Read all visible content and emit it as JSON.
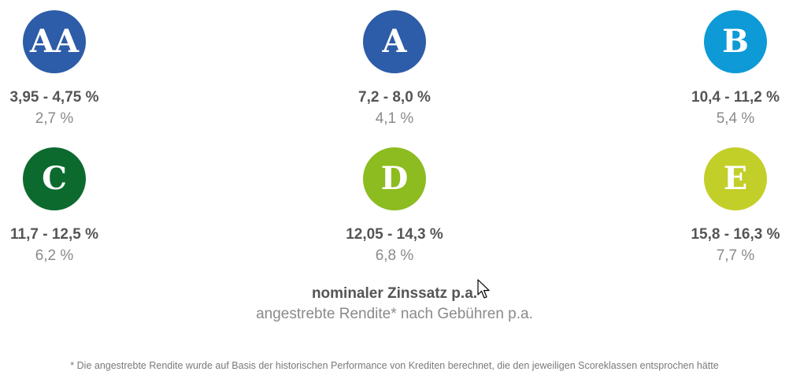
{
  "grades": [
    {
      "letter": "AA",
      "interest": "3,95 - 4,75 %",
      "yield": "2,7 %",
      "color": "#2d5ca8"
    },
    {
      "letter": "A",
      "interest": "7,2 - 8,0 %",
      "yield": "4,1 %",
      "color": "#2d5ca8"
    },
    {
      "letter": "B",
      "interest": "10,4 - 11,2 %",
      "yield": "5,4 %",
      "color": "#0d9ad6"
    },
    {
      "letter": "C",
      "interest": "11,7 - 12,5 %",
      "yield": "6,2 %",
      "color": "#0c6a2f"
    },
    {
      "letter": "D",
      "interest": "12,05 - 14,3 %",
      "yield": "6,8 %",
      "color": "#8cbc1f"
    },
    {
      "letter": "E",
      "interest": "15,8 - 16,3 %",
      "yield": "7,7 %",
      "color": "#c3cf29"
    }
  ],
  "legend": {
    "interest_label": "nominaler Zinssatz p.a.",
    "yield_label": "angestrebte Rendite* nach Gebühren p.a."
  },
  "footnote": "* Die angestrebte Rendite wurde auf Basis der historischen Performance von Krediten berechnet, die den jeweiligen Scoreklassen entsprochen hätte",
  "icons": {
    "cursor": "mouse-pointer-icon"
  }
}
